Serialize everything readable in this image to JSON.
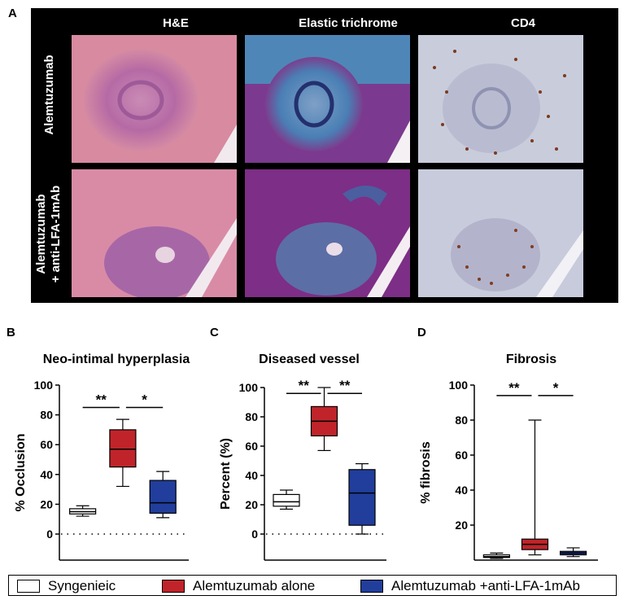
{
  "figure_a": {
    "letter": "A",
    "columns": [
      "H&E",
      "Elastic trichrome",
      "CD4"
    ],
    "rows": [
      {
        "label": "Alemtuzumab"
      },
      {
        "label_line1": "Alemtuzumab",
        "label_line2": "+ anti-LFA-1mAb"
      }
    ]
  },
  "legend": {
    "items": [
      {
        "label": "Syngenieic",
        "color": "#ffffff"
      },
      {
        "label": "Alemtuzumab alone",
        "color": "#c0242a"
      },
      {
        "label": "Alemtuzumab +anti-LFA-1mAb",
        "color": "#213e9c"
      }
    ]
  },
  "chart_data": [
    {
      "letter": "B",
      "type": "boxplot",
      "title": "Neo-intimal hyperplasia",
      "ylabel": "% Occlusion",
      "ylim": [
        0,
        100
      ],
      "yticks": [
        0,
        20,
        40,
        60,
        80,
        100
      ],
      "groups": [
        {
          "name": "Syngenieic",
          "color": "#ffffff",
          "min": 12,
          "q1": 13.5,
          "median": 15,
          "q3": 17,
          "max": 19
        },
        {
          "name": "Alemtuzumab alone",
          "color": "#c0242a",
          "min": 32,
          "q1": 45,
          "median": 57,
          "q3": 70,
          "max": 77
        },
        {
          "name": "Alemtuzumab +anti-LFA-1mAb",
          "color": "#213e9c",
          "min": 11,
          "q1": 14,
          "median": 21,
          "q3": 36,
          "max": 42
        }
      ],
      "significance": [
        {
          "from": 0,
          "to": 1,
          "label": "**",
          "y": 85
        },
        {
          "from": 1,
          "to": 2,
          "label": "*",
          "y": 85
        }
      ],
      "zero_line": "dotted"
    },
    {
      "letter": "C",
      "type": "boxplot",
      "title": "Diseased vessel",
      "ylabel": "Percent (%)",
      "ylim": [
        0,
        100
      ],
      "yticks": [
        0,
        20,
        40,
        60,
        80,
        100
      ],
      "groups": [
        {
          "name": "Syngenieic",
          "color": "#ffffff",
          "min": 17,
          "q1": 19,
          "median": 22,
          "q3": 27,
          "max": 30
        },
        {
          "name": "Alemtuzumab alone",
          "color": "#c0242a",
          "min": 57,
          "q1": 67,
          "median": 77,
          "q3": 87,
          "max": 100
        },
        {
          "name": "Alemtuzumab +anti-LFA-1mAb",
          "color": "#213e9c",
          "min": 0,
          "q1": 6,
          "median": 28,
          "q3": 44,
          "max": 48
        }
      ],
      "significance": [
        {
          "from": 0,
          "to": 1,
          "label": "**",
          "y": 96
        },
        {
          "from": 1,
          "to": 2,
          "label": "**",
          "y": 96
        }
      ],
      "zero_line": "dotted"
    },
    {
      "letter": "D",
      "type": "boxplot",
      "title": "Fibrosis",
      "ylabel": "% fibrosis",
      "ylim": [
        0,
        100
      ],
      "yticks": [
        20,
        40,
        60,
        80,
        100
      ],
      "groups": [
        {
          "name": "Syngenieic",
          "color": "#ffffff",
          "min": 1,
          "q1": 1.5,
          "median": 2,
          "q3": 3,
          "max": 4
        },
        {
          "name": "Alemtuzumab alone",
          "color": "#c0242a",
          "min": 3,
          "q1": 6,
          "median": 9,
          "q3": 12,
          "max": 80
        },
        {
          "name": "Alemtuzumab +anti-LFA-1mAb",
          "color": "#213e9c",
          "min": 2,
          "q1": 3,
          "median": 4,
          "q3": 5,
          "max": 7
        }
      ],
      "significance": [
        {
          "from": 0,
          "to": 1,
          "label": "**",
          "y": 94
        },
        {
          "from": 1,
          "to": 2,
          "label": "*",
          "y": 94
        }
      ],
      "zero_line": "none"
    }
  ]
}
